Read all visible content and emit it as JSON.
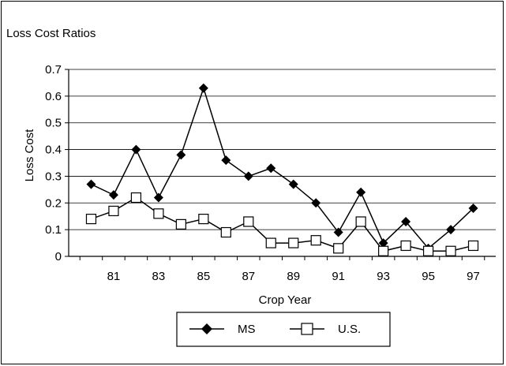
{
  "chart_data": {
    "type": "line",
    "title": "Loss Cost Ratios",
    "xlabel": "Crop Year",
    "ylabel": "Loss Cost",
    "x": [
      80,
      81,
      82,
      83,
      84,
      85,
      86,
      87,
      88,
      89,
      90,
      91,
      92,
      93,
      94,
      95,
      96,
      97
    ],
    "x_tick_labels": [
      "81",
      "83",
      "85",
      "87",
      "89",
      "91",
      "93",
      "95",
      "97"
    ],
    "ylim": [
      0,
      0.7
    ],
    "y_ticks": [
      "0",
      "0.1",
      "0.2",
      "0.3",
      "0.4",
      "0.5",
      "0.6",
      "0.7"
    ],
    "grid": "horizontal",
    "legend_position": "bottom",
    "series": [
      {
        "name": "MS",
        "marker": "filled-diamond",
        "color": "#000000",
        "values": [
          0.27,
          0.23,
          0.4,
          0.22,
          0.38,
          0.63,
          0.36,
          0.3,
          0.33,
          0.27,
          0.2,
          0.09,
          0.24,
          0.05,
          0.13,
          0.03,
          0.1,
          0.18
        ]
      },
      {
        "name": "U.S.",
        "marker": "open-square",
        "color": "#000000",
        "values": [
          0.14,
          0.17,
          0.22,
          0.16,
          0.12,
          0.14,
          0.09,
          0.13,
          0.05,
          0.05,
          0.06,
          0.03,
          0.13,
          0.02,
          0.04,
          0.02,
          0.02,
          0.04
        ]
      }
    ]
  }
}
